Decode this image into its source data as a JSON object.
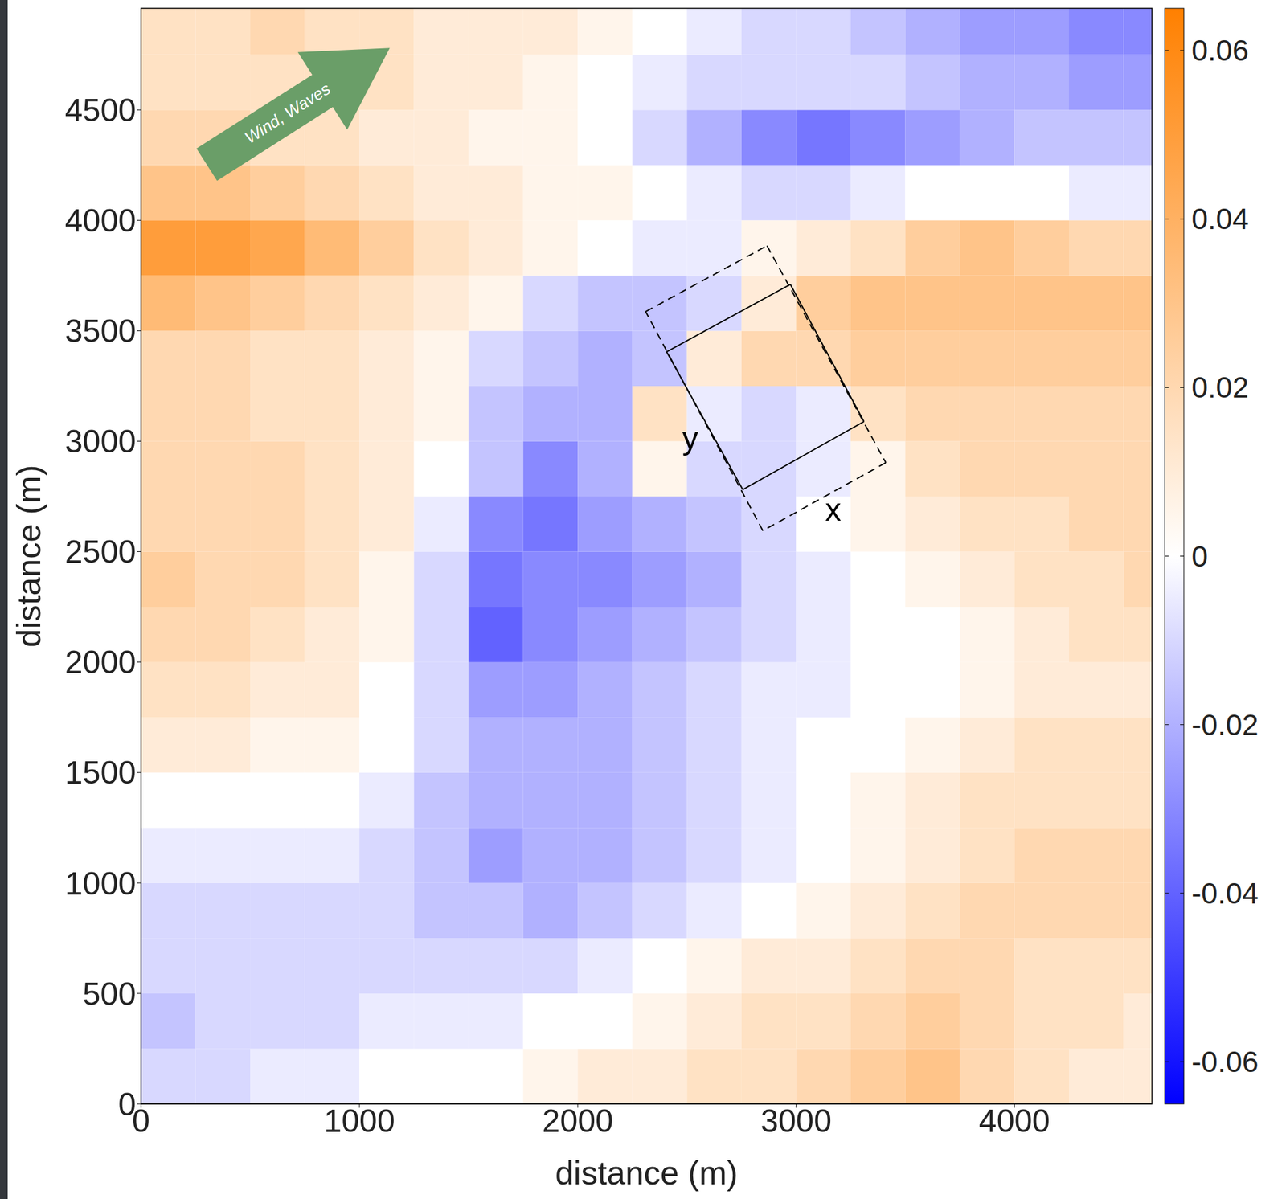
{
  "chart_data": {
    "type": "heatmap",
    "xlabel": "distance (m)",
    "ylabel": "distance (m)",
    "xlim": [
      0,
      4630
    ],
    "ylim": [
      0,
      4960
    ],
    "xticks": [
      0,
      1000,
      2000,
      3000,
      4000
    ],
    "yticks": [
      0,
      500,
      1000,
      1500,
      2000,
      2500,
      3000,
      3500,
      4000,
      4500
    ],
    "cells": {
      "x_edges": [
        0,
        250,
        500,
        750,
        1000,
        1250,
        1500,
        1750,
        2000,
        2250,
        2500,
        2750,
        3000,
        3250,
        3500,
        3750,
        4000,
        4250,
        4500,
        4630
      ],
      "y_edges": [
        0,
        250,
        500,
        750,
        1000,
        1250,
        1500,
        1750,
        2000,
        2250,
        2500,
        2750,
        3000,
        3250,
        3500,
        3750,
        4000,
        4250,
        4500,
        4750,
        4960
      ],
      "values": [
        [
          -0.01,
          -0.01,
          -0.005,
          -0.005,
          0,
          0,
          0,
          0.005,
          0.01,
          0.01,
          0.015,
          0.015,
          0.02,
          0.025,
          0.03,
          0.02,
          0.015,
          0.01,
          0.01
        ],
        [
          -0.015,
          -0.01,
          -0.01,
          -0.01,
          -0.005,
          -0.005,
          -0.005,
          0,
          0,
          0.005,
          0.01,
          0.015,
          0.015,
          0.02,
          0.025,
          0.02,
          0.015,
          0.015,
          0.01
        ],
        [
          -0.01,
          -0.01,
          -0.01,
          -0.01,
          -0.01,
          -0.01,
          -0.01,
          -0.01,
          -0.005,
          0,
          0.005,
          0.01,
          0.01,
          0.015,
          0.02,
          0.02,
          0.015,
          0.015,
          0.015
        ],
        [
          -0.01,
          -0.01,
          -0.01,
          -0.01,
          -0.01,
          -0.015,
          -0.015,
          -0.02,
          -0.015,
          -0.01,
          -0.005,
          0,
          0.005,
          0.01,
          0.015,
          0.02,
          0.02,
          0.02,
          0.02
        ],
        [
          -0.005,
          -0.005,
          -0.005,
          -0.005,
          -0.01,
          -0.015,
          -0.025,
          -0.02,
          -0.02,
          -0.015,
          -0.01,
          -0.005,
          0,
          0.005,
          0.01,
          0.015,
          0.02,
          0.02,
          0.02
        ],
        [
          0,
          0,
          0,
          0,
          -0.005,
          -0.015,
          -0.02,
          -0.02,
          -0.02,
          -0.015,
          -0.01,
          -0.005,
          0,
          0.005,
          0.01,
          0.015,
          0.015,
          0.015,
          0.015
        ],
        [
          0.01,
          0.01,
          0.005,
          0.005,
          0,
          -0.01,
          -0.02,
          -0.02,
          -0.02,
          -0.015,
          -0.01,
          -0.005,
          0,
          0,
          0.005,
          0.01,
          0.015,
          0.015,
          0.015
        ],
        [
          0.015,
          0.015,
          0.01,
          0.01,
          0,
          -0.01,
          -0.025,
          -0.025,
          -0.02,
          -0.015,
          -0.01,
          -0.005,
          -0.005,
          0,
          0,
          0.005,
          0.01,
          0.01,
          0.01
        ],
        [
          0.02,
          0.02,
          0.015,
          0.01,
          0.005,
          -0.01,
          -0.04,
          -0.03,
          -0.025,
          -0.02,
          -0.015,
          -0.01,
          -0.005,
          0,
          0,
          0.005,
          0.01,
          0.015,
          0.015
        ],
        [
          0.025,
          0.02,
          0.02,
          0.015,
          0.005,
          -0.01,
          -0.035,
          -0.03,
          -0.03,
          -0.025,
          -0.02,
          -0.01,
          -0.005,
          0,
          0.005,
          0.01,
          0.015,
          0.015,
          0.02
        ],
        [
          0.02,
          0.02,
          0.02,
          0.015,
          0.01,
          -0.005,
          -0.03,
          -0.035,
          -0.025,
          -0.02,
          -0.015,
          -0.01,
          0,
          0.005,
          0.01,
          0.015,
          0.015,
          0.02,
          0.02
        ],
        [
          0.02,
          0.02,
          0.02,
          0.015,
          0.01,
          0,
          -0.015,
          -0.03,
          -0.02,
          0.005,
          -0.01,
          -0.01,
          -0.005,
          0.005,
          0.015,
          0.02,
          0.02,
          0.02,
          0.02
        ],
        [
          0.02,
          0.02,
          0.015,
          0.015,
          0.01,
          0.005,
          -0.015,
          -0.02,
          -0.02,
          0.015,
          -0.005,
          -0.01,
          -0.005,
          0.015,
          0.02,
          0.02,
          0.02,
          0.02,
          0.02
        ],
        [
          0.02,
          0.02,
          0.015,
          0.015,
          0.01,
          0.005,
          -0.01,
          -0.015,
          -0.02,
          -0.015,
          0.01,
          0.02,
          0.02,
          0.025,
          0.025,
          0.025,
          0.025,
          0.025,
          0.025
        ],
        [
          0.035,
          0.03,
          0.025,
          0.02,
          0.015,
          0.01,
          0.005,
          -0.01,
          -0.015,
          -0.015,
          -0.01,
          0.01,
          0.025,
          0.03,
          0.03,
          0.03,
          0.03,
          0.03,
          0.03
        ],
        [
          0.05,
          0.05,
          0.045,
          0.035,
          0.025,
          0.015,
          0.01,
          0.005,
          0,
          -0.005,
          -0.005,
          0.005,
          0.01,
          0.015,
          0.025,
          0.03,
          0.025,
          0.02,
          0.02
        ],
        [
          0.03,
          0.03,
          0.025,
          0.02,
          0.015,
          0.01,
          0.01,
          0.005,
          0.005,
          0,
          -0.005,
          -0.01,
          -0.01,
          -0.005,
          0,
          0,
          0,
          -0.005,
          -0.005
        ],
        [
          0.02,
          0.02,
          0.015,
          0.015,
          0.01,
          0.01,
          0.005,
          0.005,
          0,
          -0.01,
          -0.02,
          -0.03,
          -0.035,
          -0.03,
          -0.025,
          -0.02,
          -0.015,
          -0.015,
          -0.015
        ],
        [
          0.015,
          0.015,
          0.015,
          0.015,
          0.015,
          0.01,
          0.01,
          0.005,
          0,
          -0.005,
          -0.01,
          -0.01,
          -0.01,
          -0.01,
          -0.015,
          -0.02,
          -0.02,
          -0.025,
          -0.025
        ],
        [
          0.015,
          0.015,
          0.02,
          0.015,
          0.015,
          0.01,
          0.01,
          0.01,
          0.005,
          0,
          -0.005,
          -0.01,
          -0.01,
          -0.015,
          -0.02,
          -0.025,
          -0.025,
          -0.03,
          -0.03
        ]
      ]
    },
    "colorbar": {
      "range": [
        -0.065,
        0.065
      ],
      "ticks": [
        -0.06,
        -0.04,
        -0.02,
        0,
        0.02,
        0.04,
        0.06
      ],
      "colors": [
        "#0000ff",
        "#ffffff",
        "#ff8000"
      ]
    },
    "boxes": [
      {
        "line_style": "solid",
        "corners": [
          [
            2407,
            3405
          ],
          [
            2974,
            3710
          ],
          [
            3311,
            3089
          ],
          [
            2756,
            2781
          ]
        ]
      },
      {
        "line_style": "dashed",
        "corners": [
          [
            2311,
            3587
          ],
          [
            2867,
            3885
          ],
          [
            3411,
            2903
          ],
          [
            2848,
            2595
          ]
        ]
      }
    ],
    "annotations": [
      {
        "text": "y",
        "x": 2515,
        "y": 3015
      },
      {
        "text": "x",
        "x": 3170,
        "y": 2691
      }
    ],
    "arrow": {
      "text": "Wind, Waves",
      "color": "#6a9e68"
    }
  }
}
